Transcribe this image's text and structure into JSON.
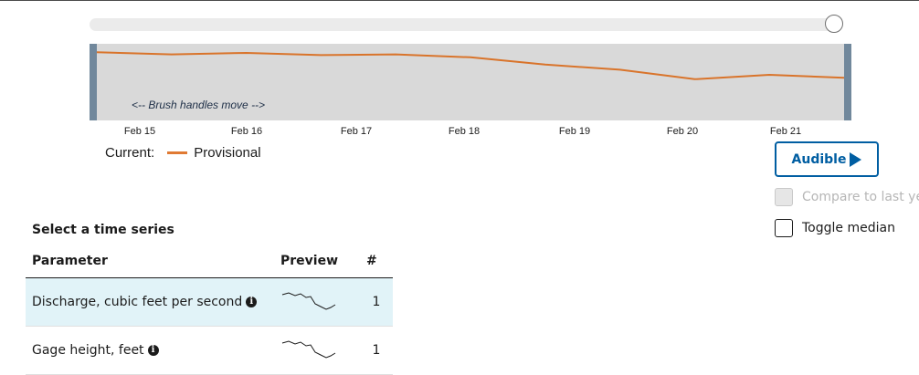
{
  "slider": {
    "value_fraction": 0.99
  },
  "brush": {
    "note": "<-- Brush handles move -->",
    "line_color": "#d9742b",
    "background_color": "#d9d9d9",
    "handle_color": "#71889c"
  },
  "chart_data": {
    "type": "line",
    "x_ticks": [
      "Feb 15",
      "Feb 16",
      "Feb 17",
      "Feb 18",
      "Feb 19",
      "Feb 20",
      "Feb 21"
    ],
    "series": [
      {
        "name": "Provisional",
        "color": "#d9742b",
        "x": [
          0,
          0.1,
          0.2,
          0.3,
          0.4,
          0.5,
          0.6,
          0.7,
          0.8,
          0.9,
          1.0
        ],
        "y": [
          0.92,
          0.86,
          0.9,
          0.84,
          0.86,
          0.78,
          0.58,
          0.44,
          0.18,
          0.3,
          0.22
        ]
      }
    ]
  },
  "legend": {
    "prefix": "Current:",
    "series_label": "Provisional",
    "color": "#e07a33"
  },
  "audible_button": {
    "label": "Audible",
    "icon": "play-icon"
  },
  "compare_checkbox": {
    "label": "Compare to last ye",
    "checked": false,
    "disabled": true
  },
  "median_checkbox": {
    "label": "Toggle median",
    "checked": false,
    "disabled": false
  },
  "time_series": {
    "title": "Select a time series",
    "headers": {
      "parameter": "Parameter",
      "preview": "Preview",
      "count": "#"
    },
    "rows": [
      {
        "parameter": "Discharge, cubic feet per second",
        "count": "1",
        "selected": true,
        "info_icon": "info-icon"
      },
      {
        "parameter": "Gage height, feet",
        "count": "1",
        "selected": false,
        "info_icon": "info-icon"
      }
    ]
  }
}
